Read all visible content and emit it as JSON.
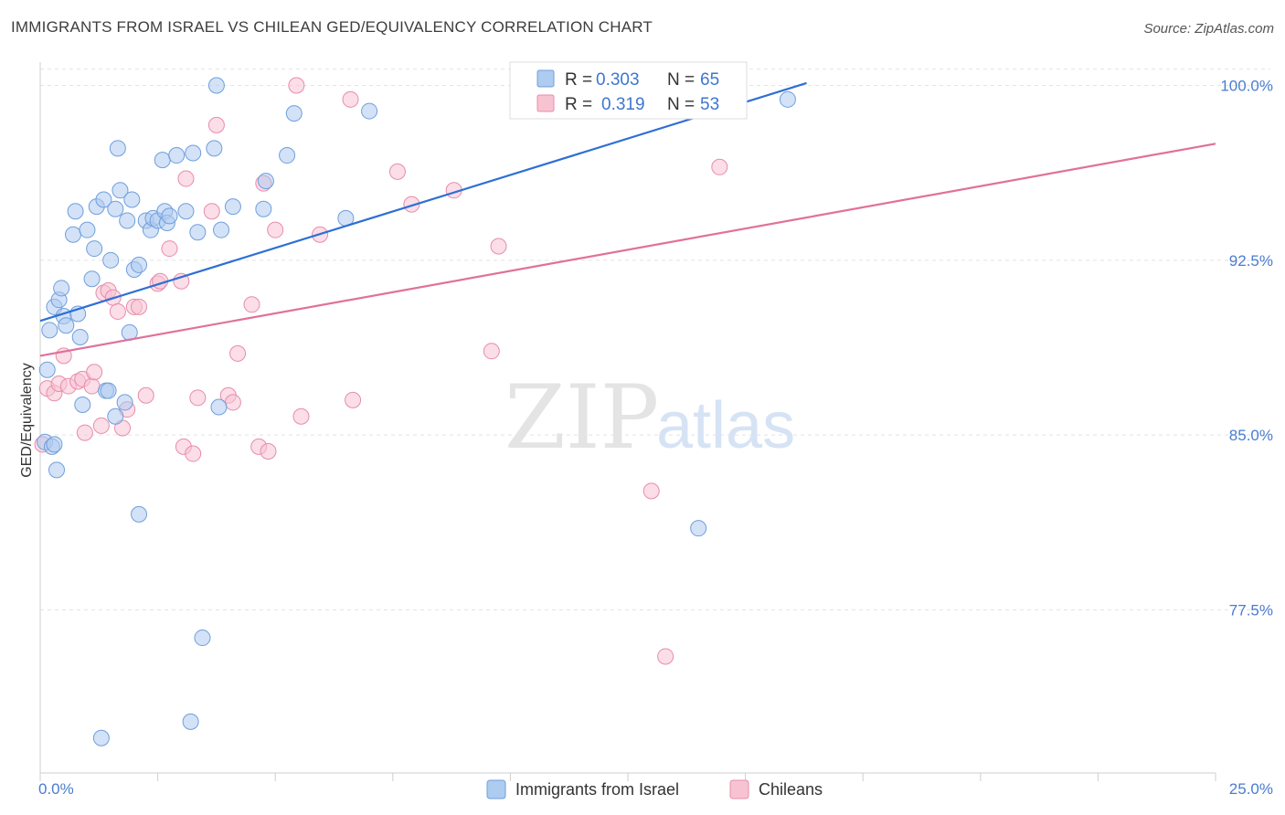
{
  "title": "IMMIGRANTS FROM ISRAEL VS CHILEAN GED/EQUIVALENCY CORRELATION CHART",
  "source": "Source: ZipAtlas.com",
  "watermark": {
    "zip": "ZIP",
    "atlas": "atlas"
  },
  "legend": {
    "r_label": "R =",
    "n_label": "N =",
    "israel": {
      "r": "0.303",
      "n": "65"
    },
    "chile": {
      "r": "0.319",
      "n": "53"
    }
  },
  "bottom_legend": {
    "israel": "Immigrants from Israel",
    "chile": "Chileans"
  },
  "colors": {
    "israel_fill": "#aecbf0",
    "israel_stroke": "#6f9fdc",
    "israel_line": "#2e6fd4",
    "chile_fill": "#f7c3d3",
    "chile_stroke": "#e88cab",
    "chile_line": "#e0719a",
    "axis_text": "#4a7ccf"
  },
  "chart_data": {
    "type": "scatter",
    "title": "IMMIGRANTS FROM ISRAEL VS CHILEAN GED/EQUIVALENCY CORRELATION CHART",
    "xlabel": "",
    "ylabel": "GED/Equivalency",
    "xlim": [
      0,
      25
    ],
    "ylim": [
      70.5,
      101.0
    ],
    "x_tick_labels": [
      "0.0%",
      "25.0%"
    ],
    "y_ticks": [
      77.5,
      85.0,
      92.5,
      100.0
    ],
    "y_tick_labels": [
      "77.5%",
      "85.0%",
      "92.5%",
      "100.0%"
    ],
    "grid": true,
    "legend_position": "top-center",
    "series": [
      {
        "name": "Immigrants from Israel",
        "r": 0.303,
        "n": 65,
        "trend": {
          "x": [
            0.0,
            16.3
          ],
          "y": [
            89.9,
            100.1
          ]
        },
        "points": [
          [
            0.1,
            84.7
          ],
          [
            0.15,
            87.8
          ],
          [
            0.2,
            89.5
          ],
          [
            0.25,
            84.5
          ],
          [
            0.3,
            90.5
          ],
          [
            0.35,
            83.5
          ],
          [
            0.4,
            90.8
          ],
          [
            0.45,
            91.3
          ],
          [
            0.5,
            90.1
          ],
          [
            0.55,
            89.7
          ],
          [
            0.7,
            93.6
          ],
          [
            0.75,
            94.6
          ],
          [
            0.8,
            90.2
          ],
          [
            0.85,
            89.2
          ],
          [
            0.9,
            86.3
          ],
          [
            1.0,
            93.8
          ],
          [
            1.1,
            91.7
          ],
          [
            1.15,
            93.0
          ],
          [
            1.2,
            94.8
          ],
          [
            1.3,
            72.0
          ],
          [
            1.35,
            95.1
          ],
          [
            1.4,
            86.9
          ],
          [
            1.45,
            86.9
          ],
          [
            1.5,
            92.5
          ],
          [
            1.6,
            94.7
          ],
          [
            1.6,
            85.8
          ],
          [
            1.65,
            97.3
          ],
          [
            1.7,
            95.5
          ],
          [
            1.8,
            86.4
          ],
          [
            1.85,
            94.2
          ],
          [
            1.9,
            89.4
          ],
          [
            1.95,
            95.1
          ],
          [
            2.0,
            92.1
          ],
          [
            2.1,
            92.3
          ],
          [
            2.1,
            81.6
          ],
          [
            2.25,
            94.2
          ],
          [
            2.35,
            93.8
          ],
          [
            2.4,
            94.3
          ],
          [
            2.5,
            94.2
          ],
          [
            2.6,
            96.8
          ],
          [
            2.65,
            94.6
          ],
          [
            2.7,
            94.1
          ],
          [
            2.75,
            94.4
          ],
          [
            2.9,
            97.0
          ],
          [
            3.1,
            94.6
          ],
          [
            3.2,
            72.7
          ],
          [
            3.25,
            97.1
          ],
          [
            3.35,
            93.7
          ],
          [
            3.45,
            76.3
          ],
          [
            3.7,
            97.3
          ],
          [
            3.75,
            100.0
          ],
          [
            3.8,
            86.2
          ],
          [
            3.85,
            93.8
          ],
          [
            4.1,
            94.8
          ],
          [
            4.75,
            94.7
          ],
          [
            4.8,
            95.9
          ],
          [
            5.25,
            97.0
          ],
          [
            5.4,
            98.8
          ],
          [
            6.5,
            94.3
          ],
          [
            7.0,
            98.9
          ],
          [
            10.4,
            100.0
          ],
          [
            11.5,
            100.0
          ],
          [
            14.0,
            81.0
          ],
          [
            15.9,
            99.4
          ],
          [
            0.3,
            84.6
          ]
        ]
      },
      {
        "name": "Chileans",
        "r": 0.319,
        "n": 53,
        "trend": {
          "x": [
            0.0,
            25.0
          ],
          "y": [
            88.4,
            97.5
          ]
        },
        "points": [
          [
            0.05,
            84.6
          ],
          [
            0.15,
            87.0
          ],
          [
            0.3,
            86.8
          ],
          [
            0.4,
            87.2
          ],
          [
            0.5,
            88.4
          ],
          [
            0.6,
            87.1
          ],
          [
            0.8,
            87.3
          ],
          [
            0.9,
            87.4
          ],
          [
            0.95,
            85.1
          ],
          [
            1.1,
            87.1
          ],
          [
            1.15,
            87.7
          ],
          [
            1.3,
            85.4
          ],
          [
            1.35,
            91.1
          ],
          [
            1.45,
            91.2
          ],
          [
            1.55,
            90.9
          ],
          [
            1.65,
            90.3
          ],
          [
            1.75,
            85.3
          ],
          [
            1.85,
            86.1
          ],
          [
            2.0,
            90.5
          ],
          [
            2.1,
            90.5
          ],
          [
            2.25,
            86.7
          ],
          [
            2.5,
            91.5
          ],
          [
            2.55,
            91.6
          ],
          [
            2.75,
            93.0
          ],
          [
            3.0,
            91.6
          ],
          [
            3.05,
            84.5
          ],
          [
            3.1,
            96.0
          ],
          [
            3.25,
            84.2
          ],
          [
            3.35,
            86.6
          ],
          [
            3.65,
            94.6
          ],
          [
            3.75,
            98.3
          ],
          [
            4.0,
            86.7
          ],
          [
            4.1,
            86.4
          ],
          [
            4.2,
            88.5
          ],
          [
            4.5,
            90.6
          ],
          [
            4.65,
            84.5
          ],
          [
            4.75,
            95.8
          ],
          [
            4.85,
            84.3
          ],
          [
            5.0,
            93.8
          ],
          [
            5.55,
            85.8
          ],
          [
            5.45,
            100.0
          ],
          [
            5.95,
            93.6
          ],
          [
            6.6,
            99.4
          ],
          [
            6.65,
            86.5
          ],
          [
            7.6,
            96.3
          ],
          [
            7.9,
            94.9
          ],
          [
            8.8,
            95.5
          ],
          [
            9.6,
            88.6
          ],
          [
            9.75,
            93.1
          ],
          [
            13.0,
            82.6
          ],
          [
            13.3,
            75.5
          ],
          [
            14.4,
            100.0
          ],
          [
            14.45,
            96.5
          ]
        ]
      }
    ]
  }
}
